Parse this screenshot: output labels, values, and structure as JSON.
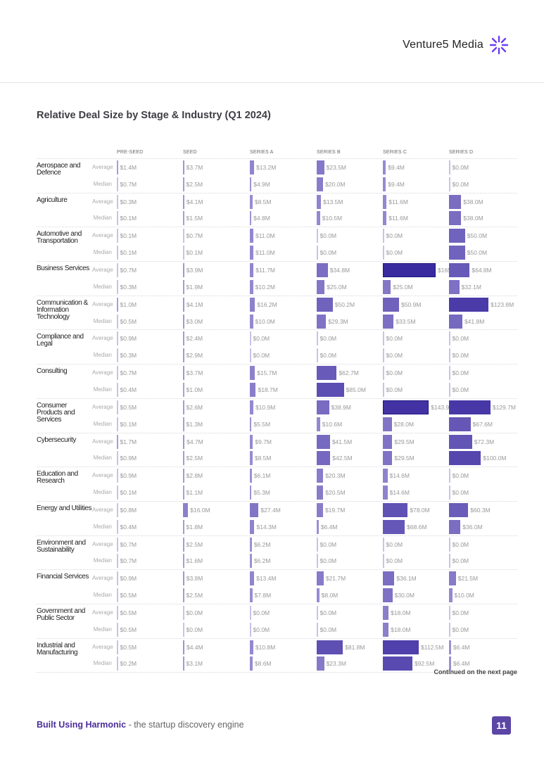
{
  "header": {
    "brand": "Venture5 Media"
  },
  "title": "Relative Deal Size by Stage & Industry (Q1 2024)",
  "columns": [
    "PRE-SEED",
    "SEED",
    "SERIES A",
    "SERIES B",
    "SERIES C",
    "SERIES D"
  ],
  "metrics": {
    "average": "Average",
    "median": "Median"
  },
  "industries": [
    {
      "name": "Aerospace and Defence",
      "average": [
        "$1.4M",
        "$3.7M",
        "$13.2M",
        "$23.5M",
        "$9.4M",
        "$0.0M"
      ],
      "median": [
        "$0.7M",
        "$2.5M",
        "$4.9M",
        "$20.0M",
        "$9.4M",
        "$0.0M"
      ]
    },
    {
      "name": "Agriculture",
      "average": [
        "$0.3M",
        "$4.1M",
        "$8.5M",
        "$13.5M",
        "$11.6M",
        "$38.0M"
      ],
      "median": [
        "$0.1M",
        "$1.5M",
        "$4.8M",
        "$10.5M",
        "$11.6M",
        "$38.0M"
      ]
    },
    {
      "name": "Automotive and Transportation",
      "average": [
        "$0.1M",
        "$0.7M",
        "$11.0M",
        "$0.0M",
        "$0.0M",
        "$50.0M"
      ],
      "median": [
        "$0.1M",
        "$0.1M",
        "$11.0M",
        "$0.0M",
        "$0.0M",
        "$50.0M"
      ]
    },
    {
      "name": "Business Services",
      "average": [
        "$0.7M",
        "$3.9M",
        "$11.7M",
        "$34.8M",
        "$165.3M",
        "$64.8M"
      ],
      "median": [
        "$0.3M",
        "$1.9M",
        "$10.2M",
        "$25.0M",
        "$25.0M",
        "$32.1M"
      ]
    },
    {
      "name": "Communication & Information Technology",
      "average": [
        "$1.0M",
        "$4.1M",
        "$16.2M",
        "$50.2M",
        "$50.9M",
        "$123.8M"
      ],
      "median": [
        "$0.5M",
        "$3.0M",
        "$10.0M",
        "$29.3M",
        "$33.5M",
        "$41.8M"
      ]
    },
    {
      "name": "Compliance and Legal",
      "average": [
        "$0.9M",
        "$2.4M",
        "$0.0M",
        "$0.0M",
        "$0.0M",
        "$0.0M"
      ],
      "median": [
        "$0.3M",
        "$2.9M",
        "$0.0M",
        "$0.0M",
        "$0.0M",
        "$0.0M"
      ]
    },
    {
      "name": "Consulting",
      "average": [
        "$0.7M",
        "$3.7M",
        "$15.7M",
        "$62.7M",
        "$0.0M",
        "$0.0M"
      ],
      "median": [
        "$0.4M",
        "$1.0M",
        "$18.7M",
        "$85.0M",
        "$0.0M",
        "$0.0M"
      ]
    },
    {
      "name": "Consumer Products and Services",
      "average": [
        "$0.5M",
        "$2.6M",
        "$10.9M",
        "$38.9M",
        "$143.9M",
        "$129.7M"
      ],
      "median": [
        "$0.1M",
        "$1.3M",
        "$5.5M",
        "$10.6M",
        "$28.0M",
        "$67.6M"
      ]
    },
    {
      "name": "Cybersecurity",
      "average": [
        "$1.7M",
        "$4.7M",
        "$9.7M",
        "$41.5M",
        "$29.5M",
        "$72.3M"
      ],
      "median": [
        "$0.9M",
        "$2.5M",
        "$8.5M",
        "$42.5M",
        "$29.5M",
        "$100.0M"
      ]
    },
    {
      "name": "Education and Research",
      "average": [
        "$0.9M",
        "$2.8M",
        "$6.1M",
        "$20.3M",
        "$14.6M",
        "$0.0M"
      ],
      "median": [
        "$0.1M",
        "$1.1M",
        "$5.3M",
        "$20.5M",
        "$14.6M",
        "$0.0M"
      ]
    },
    {
      "name": "Energy and Utilities",
      "average": [
        "$0.8M",
        "$16.0M",
        "$27.4M",
        "$19.7M",
        "$78.0M",
        "$60.3M"
      ],
      "median": [
        "$0.4M",
        "$1.8M",
        "$14.3M",
        "$6.4M",
        "$68.6M",
        "$36.0M"
      ]
    },
    {
      "name": "Environment and Sustainability",
      "average": [
        "$0.7M",
        "$2.5M",
        "$6.2M",
        "$0.0M",
        "$0.0M",
        "$0.0M"
      ],
      "median": [
        "$0.7M",
        "$1.6M",
        "$6.2M",
        "$0.0M",
        "$0.0M",
        "$0.0M"
      ]
    },
    {
      "name": "Financial Services",
      "average": [
        "$0.9M",
        "$3.8M",
        "$13.4M",
        "$21.7M",
        "$36.1M",
        "$21.5M"
      ],
      "median": [
        "$0.5M",
        "$2.5M",
        "$7.8M",
        "$8.0M",
        "$30.0M",
        "$10.0M"
      ]
    },
    {
      "name": "Government and Public Sector",
      "average": [
        "$0.5M",
        "$0.0M",
        "$0.0M",
        "$0.0M",
        "$18.0M",
        "$0.0M"
      ],
      "median": [
        "$0.5M",
        "$0.0M",
        "$0.0M",
        "$0.0M",
        "$18.0M",
        "$0.0M"
      ]
    },
    {
      "name": "Industrial and Manufacturing",
      "average": [
        "$0.5M",
        "$4.4M",
        "$10.8M",
        "$81.8M",
        "$112.5M",
        "$6.4M"
      ],
      "median": [
        "$0.2M",
        "$3.1M",
        "$8.6M",
        "$23.3M",
        "$92.5M",
        "$6.4M"
      ]
    }
  ],
  "continued": "Continued on the next page",
  "footer": {
    "brand": "Built Using Harmonic",
    "tagline": " - the startup discovery engine",
    "page": "11"
  },
  "colors": {
    "accent": "#5b46a6",
    "bar_light": "#b3a8e0",
    "bar_dark": "#3a2aa0"
  }
}
